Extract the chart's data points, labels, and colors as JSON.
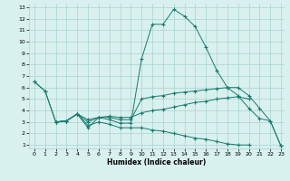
{
  "xlabel": "Humidex (Indice chaleur)",
  "x_values": [
    0,
    1,
    2,
    3,
    4,
    5,
    6,
    7,
    8,
    9,
    10,
    11,
    12,
    13,
    14,
    15,
    16,
    17,
    18,
    19,
    20,
    21,
    22,
    23
  ],
  "line1": [
    6.5,
    5.7,
    3.0,
    3.1,
    3.7,
    2.5,
    3.4,
    3.2,
    2.9,
    2.9,
    8.5,
    11.5,
    11.5,
    12.8,
    12.2,
    11.3,
    9.5,
    7.5,
    6.0,
    5.3,
    4.2,
    3.3,
    3.1,
    0.9
  ],
  "line2": [
    6.5,
    5.7,
    3.0,
    3.1,
    3.7,
    3.0,
    3.4,
    3.4,
    3.2,
    3.2,
    5.0,
    5.2,
    5.3,
    5.5,
    5.6,
    5.7,
    5.8,
    5.9,
    6.0,
    6.0,
    5.3,
    4.2,
    3.1,
    0.9
  ],
  "line3": [
    null,
    null,
    3.0,
    3.1,
    3.7,
    3.2,
    3.4,
    3.5,
    3.4,
    3.4,
    3.8,
    4.0,
    4.1,
    4.3,
    4.5,
    4.7,
    4.8,
    5.0,
    5.1,
    5.2,
    5.0,
    null,
    null,
    null
  ],
  "line4": [
    null,
    null,
    3.0,
    3.1,
    3.7,
    2.7,
    3.0,
    2.8,
    2.5,
    2.5,
    2.5,
    2.3,
    2.2,
    2.0,
    1.8,
    1.6,
    1.5,
    1.3,
    1.1,
    1.0,
    1.0,
    null,
    null,
    null
  ],
  "line_color": "#1a7a6e",
  "bg_color": "#d8f0ee",
  "grid_color": "#aad4ce",
  "ylim_min": 1,
  "ylim_max": 13,
  "xlim_min": 0,
  "xlim_max": 23,
  "yticks": [
    1,
    2,
    3,
    4,
    5,
    6,
    7,
    8,
    9,
    10,
    11,
    12,
    13
  ],
  "xticks": [
    0,
    1,
    2,
    3,
    4,
    5,
    6,
    7,
    8,
    9,
    10,
    11,
    12,
    13,
    14,
    15,
    16,
    17,
    18,
    19,
    20,
    21,
    22,
    23
  ]
}
